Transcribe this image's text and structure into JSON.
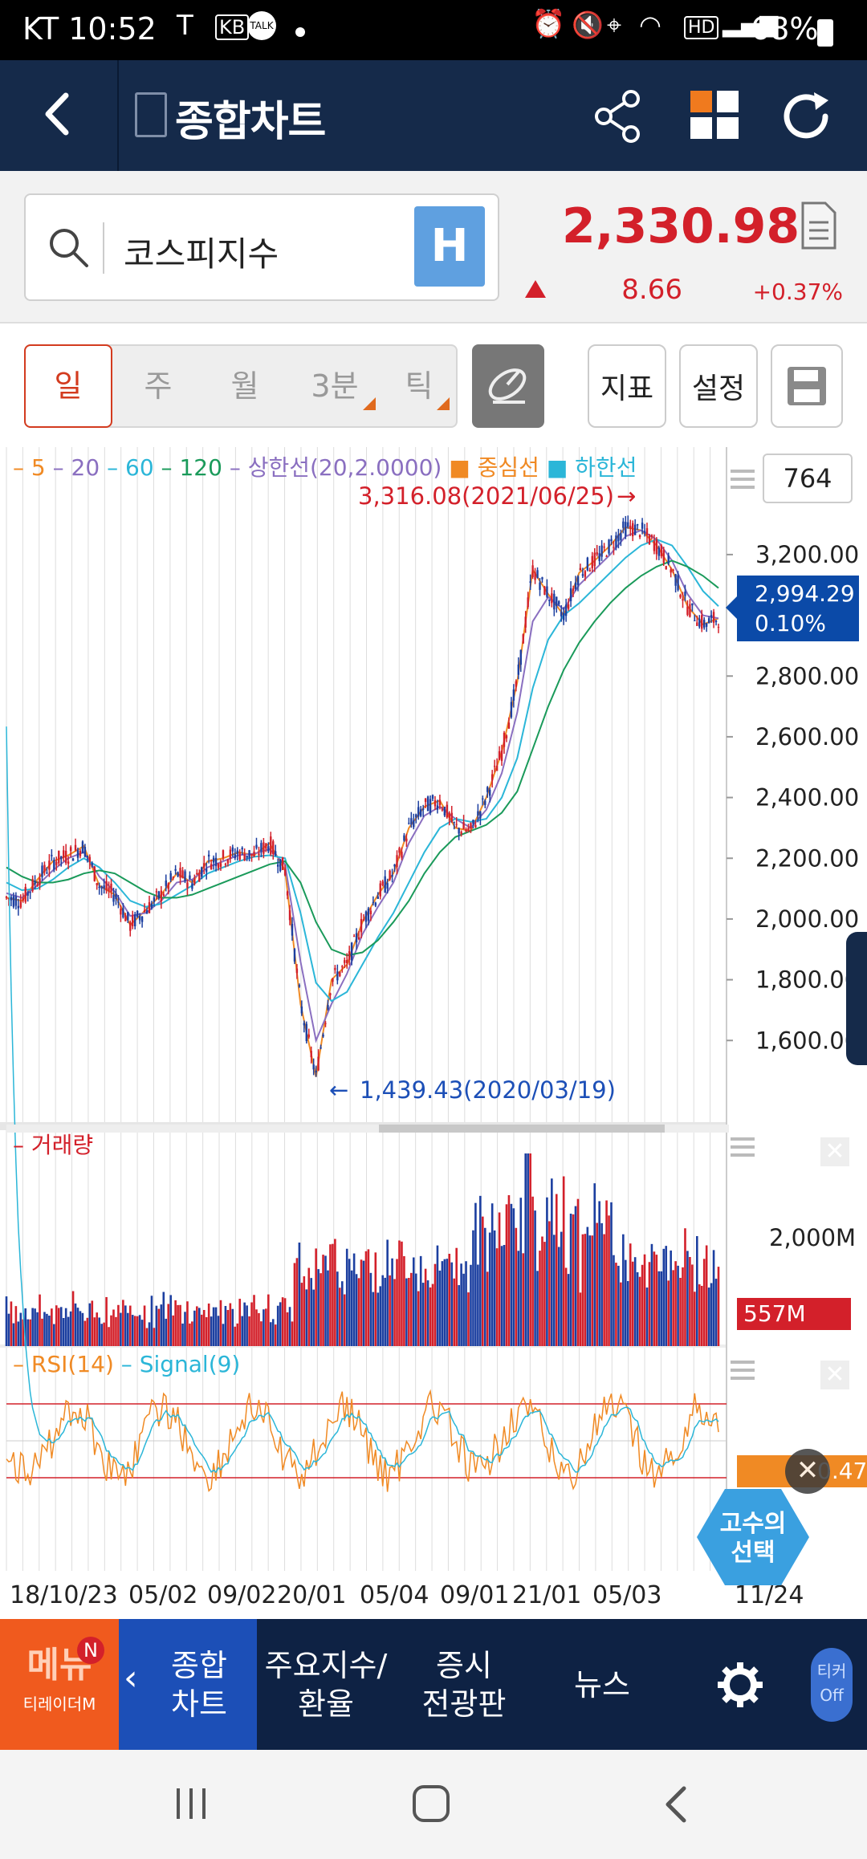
{
  "status": {
    "carrier_time": "KT 10:52",
    "battery": "68%"
  },
  "header": {
    "title": "종합차트"
  },
  "search": {
    "value": "코스피지수",
    "h_label": "H"
  },
  "quote": {
    "price": "2,330.98",
    "change": "8.66",
    "change_pct": "+0.37%"
  },
  "periods": [
    "일",
    "주",
    "월",
    "3분",
    "틱"
  ],
  "buttons": {
    "indicator": "지표",
    "settings": "설정"
  },
  "legend": {
    "ma5": "5",
    "ma20": "20",
    "ma60": "60",
    "ma120": "120",
    "upper": "상한선(20,2.0000)",
    "middle": "중심선",
    "lower": "하한선"
  },
  "count_box": "764",
  "high_label": "3,316.08(2021/06/25)",
  "low_label": "1,439.43(2020/03/19)",
  "current": {
    "price": "2,994.29",
    "pct": "0.10%"
  },
  "volume_legend": "거래량",
  "volume_tick": "2,000M",
  "volume_current": "557M",
  "rsi_legend": "RSI(14)",
  "signal_legend": "Signal(9)",
  "rsi_current": "0.47",
  "badge": {
    "line1": "고수의",
    "line2": "선택"
  },
  "nav": {
    "menu": "메뉴",
    "menu_sub": "티레이더M",
    "new_badge": "N",
    "item1": "종합\n차트",
    "item2": "주요지수/\n환율",
    "item3": "증시\n전광판",
    "item4": "뉴스",
    "ticker_line1": "티커",
    "ticker_line2": "Off"
  },
  "colors": {
    "up": "#d3202a",
    "navy": "#152a4a",
    "blue_box": "#0b4aa8",
    "orange": "#f08a24",
    "accent_blue": "#1c4fb7"
  },
  "chart_data": {
    "type": "line",
    "title": "",
    "price_ticks": [
      "3,200.00",
      "2,800.00",
      "2,600.00",
      "2,400.00",
      "2,200.00",
      "2,000.00",
      "1,800.00",
      "1,600.00"
    ],
    "x_ticks": [
      "18/10/23",
      "05/02",
      "09/02",
      "20/01",
      "05/04",
      "09/01",
      "21/01",
      "05/03",
      "11/24"
    ],
    "ylim": [
      1439.43,
      3316.08
    ],
    "series": [
      {
        "name": "5",
        "values": [
          2070,
          2060,
          2130,
          2190,
          2210,
          2240,
          2110,
          2080,
          1980,
          2030,
          2080,
          2150,
          2120,
          2190,
          2200,
          2220,
          2210,
          2250,
          2160,
          1720,
          1480,
          1800,
          1850,
          1990,
          2080,
          2150,
          2300,
          2370,
          2390,
          2300,
          2290,
          2400,
          2550,
          2780,
          3150,
          3070,
          3000,
          3140,
          3180,
          3230,
          3290,
          3280,
          3230,
          3150,
          3030,
          2970,
          2990
        ]
      },
      {
        "name": "20",
        "values": [
          2085,
          2070,
          2110,
          2160,
          2200,
          2220,
          2140,
          2090,
          2010,
          2020,
          2060,
          2120,
          2130,
          2170,
          2190,
          2210,
          2215,
          2230,
          2180,
          1860,
          1600,
          1720,
          1820,
          1950,
          2040,
          2120,
          2250,
          2340,
          2370,
          2330,
          2300,
          2360,
          2480,
          2680,
          2980,
          3060,
          3020,
          3100,
          3150,
          3200,
          3260,
          3280,
          3250,
          3180,
          3070,
          3000,
          2990
        ]
      },
      {
        "name": "60",
        "values": [
          2120,
          2095,
          2100,
          2130,
          2170,
          2200,
          2170,
          2120,
          2060,
          2040,
          2050,
          2080,
          2110,
          2150,
          2170,
          2190,
          2205,
          2210,
          2200,
          2020,
          1790,
          1730,
          1760,
          1850,
          1940,
          2020,
          2120,
          2220,
          2300,
          2330,
          2320,
          2330,
          2400,
          2530,
          2760,
          2920,
          3000,
          3040,
          3090,
          3140,
          3190,
          3230,
          3250,
          3230,
          3160,
          3080,
          3030
        ]
      },
      {
        "name": "120",
        "values": [
          2170,
          2140,
          2120,
          2120,
          2130,
          2150,
          2160,
          2150,
          2120,
          2090,
          2070,
          2070,
          2080,
          2100,
          2120,
          2140,
          2160,
          2180,
          2190,
          2120,
          1990,
          1900,
          1880,
          1890,
          1930,
          1990,
          2060,
          2150,
          2220,
          2270,
          2290,
          2310,
          2350,
          2420,
          2560,
          2700,
          2820,
          2910,
          2980,
          3040,
          3090,
          3130,
          3160,
          3180,
          3160,
          3130,
          3090
        ]
      }
    ],
    "volume_note": "bars",
    "rsi_levels": [
      70,
      30
    ]
  }
}
